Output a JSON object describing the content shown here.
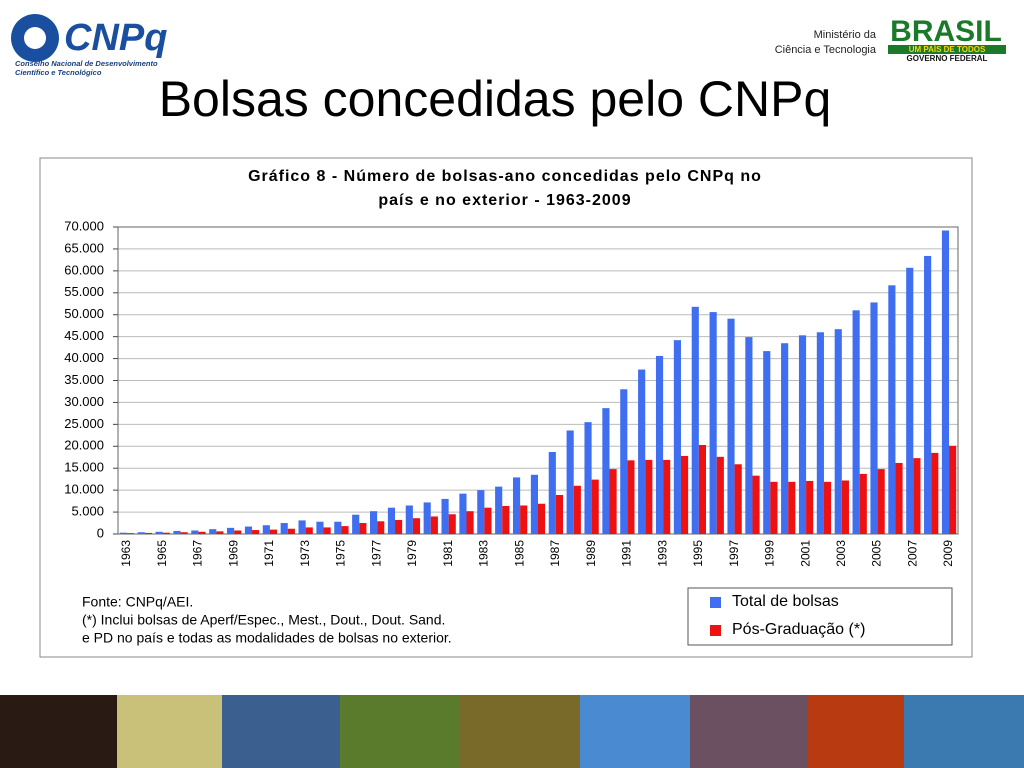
{
  "page_title": "Bolsas concedidas pelo CNPq",
  "logo_left": {
    "name": "CNPq",
    "line1": "Conselho Nacional de Desenvolvimento",
    "line2": "Científico e Tecnológico"
  },
  "logo_right": {
    "line1": "Ministério da",
    "line2": "Ciência e Tecnologia",
    "brand": "BRASIL",
    "slogan": "UM PAÍS DE TODOS",
    "gov": "GOVERNO FEDERAL"
  },
  "chart_data": {
    "type": "bar",
    "title": [
      "Gráfico 8 - Número de bolsas-ano concedidas pelo CNPq no",
      "país e no exterior - 1963-2009"
    ],
    "categories": [
      "1963",
      null,
      "1965",
      null,
      "1967",
      null,
      "1969",
      null,
      "1971",
      null,
      "1973",
      null,
      "1975",
      null,
      "1977",
      null,
      "1979",
      null,
      "1981",
      null,
      "1983",
      null,
      "1985",
      null,
      "1987",
      null,
      "1989",
      null,
      "1991",
      null,
      "1993",
      null,
      "1995",
      null,
      "1997",
      null,
      "1999",
      null,
      "2001",
      null,
      "2003",
      null,
      "2005",
      null,
      "2007",
      null,
      "2009"
    ],
    "series": [
      {
        "name": "Total de bolsas",
        "color": "#3f6ff0",
        "values": [
          300,
          400,
          500,
          700,
          800,
          1100,
          1400,
          1700,
          2000,
          2500,
          3100,
          2800,
          2800,
          4400,
          5200,
          6000,
          6500,
          7200,
          8000,
          9200,
          10000,
          10800,
          12900,
          13500,
          18700,
          23600,
          25500,
          28700,
          33000,
          37500,
          40600,
          44200,
          51800,
          50600,
          49100,
          44900,
          41700,
          43500,
          45300,
          46000,
          46700,
          51000,
          52800,
          56700,
          60700,
          63400,
          69200
        ]
      },
      {
        "name": "Pós-Graduação (*)",
        "color": "#ee1111",
        "values": [
          200,
          250,
          300,
          400,
          500,
          600,
          800,
          900,
          1000,
          1200,
          1500,
          1500,
          1800,
          2500,
          2900,
          3200,
          3600,
          4000,
          4500,
          5200,
          6000,
          6400,
          6500,
          6900,
          8900,
          11000,
          12400,
          14800,
          16800,
          16900,
          16900,
          17800,
          20300,
          17600,
          15900,
          13300,
          11900,
          11900,
          12100,
          11900,
          12200,
          13700,
          14800,
          16200,
          17300,
          18500,
          20100
        ]
      }
    ],
    "ylim": [
      0,
      70000
    ],
    "yticks": [
      0,
      {
        "value": 5000,
        "label": "5.000"
      },
      {
        "value": 10000,
        "label": "10.000"
      },
      {
        "value": 15000,
        "label": "15.000"
      },
      {
        "value": 20000,
        "label": "20.000"
      },
      {
        "value": 25000,
        "label": "25.000"
      },
      {
        "value": 30000,
        "label": "30.000"
      },
      {
        "value": 35000,
        "label": "35.000"
      },
      {
        "value": 40000,
        "label": "40.000"
      },
      {
        "value": 45000,
        "label": "45.000"
      },
      {
        "value": 50000,
        "label": "50.000"
      },
      {
        "value": 55000,
        "label": "55.000"
      },
      {
        "value": 60000,
        "label": "60.000"
      },
      {
        "value": 65000,
        "label": "65.000"
      },
      {
        "value": 70000,
        "label": "70.000"
      }
    ],
    "grid": true,
    "notes": [
      "Fonte: CNPq/AEI.",
      "(*) Inclui bolsas de Aperf/Espec., Mest., Dout., Dout. Sand.",
      "e PD no país e todas as modalidades de bolsas no exterior."
    ]
  }
}
